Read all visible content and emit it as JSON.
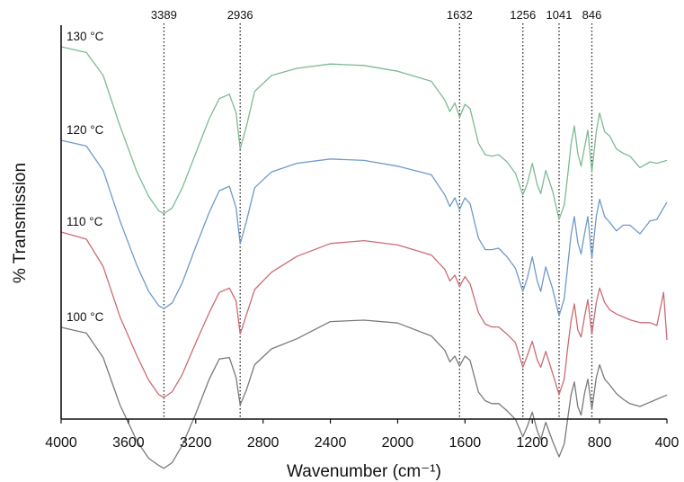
{
  "chart_data": {
    "type": "line",
    "xlabel": "Wavenumber (cm⁻¹)",
    "ylabel": "% Transmission",
    "xlim": [
      4000,
      400
    ],
    "x_reversed": true,
    "x_ticks": [
      {
        "value": 4000,
        "label": "4000"
      },
      {
        "value": 3600,
        "label": "3600"
      },
      {
        "value": 3200,
        "label": "3200"
      },
      {
        "value": 2800,
        "label": "2800"
      },
      {
        "value": 2400,
        "label": "2400"
      },
      {
        "value": 2000,
        "label": "2000"
      },
      {
        "value": 1600,
        "label": "1600"
      },
      {
        "value": 1200,
        "label": "1200"
      },
      {
        "value": 800,
        "label": "800"
      },
      {
        "value": 400,
        "label": "400"
      }
    ],
    "y_ticks_shown": false,
    "grid": false,
    "peak_markers": [
      {
        "value": 3389,
        "label": "3389"
      },
      {
        "value": 2936,
        "label": "2936"
      },
      {
        "value": 1632,
        "label": "1632"
      },
      {
        "value": 1256,
        "label": "1256"
      },
      {
        "value": 1041,
        "label": "1041"
      },
      {
        "value": 846,
        "label": "846"
      }
    ],
    "series": [
      {
        "name": "130 °C",
        "color": "#7dba95",
        "x": [
          4000,
          3850,
          3750,
          3650,
          3550,
          3480,
          3420,
          3389,
          3340,
          3280,
          3200,
          3120,
          3060,
          3000,
          2960,
          2936,
          2900,
          2850,
          2750,
          2600,
          2400,
          2200,
          2000,
          1800,
          1720,
          1690,
          1660,
          1632,
          1600,
          1570,
          1520,
          1480,
          1440,
          1400,
          1350,
          1300,
          1256,
          1230,
          1200,
          1170,
          1150,
          1120,
          1080,
          1041,
          1010,
          990,
          970,
          950,
          930,
          910,
          890,
          870,
          846,
          820,
          800,
          770,
          740,
          700,
          660,
          620,
          560,
          500,
          460,
          400
        ],
        "y": [
          0.0,
          -0.4,
          -2.0,
          -5.5,
          -8.7,
          -10.4,
          -11.4,
          -11.6,
          -11.2,
          -9.8,
          -7.4,
          -5.0,
          -3.6,
          -3.3,
          -4.6,
          -7.1,
          -5.6,
          -3.1,
          -2.0,
          -1.5,
          -1.2,
          -1.3,
          -1.7,
          -2.4,
          -3.7,
          -4.5,
          -3.9,
          -4.9,
          -4.0,
          -4.3,
          -6.7,
          -7.5,
          -7.6,
          -7.5,
          -8.0,
          -8.8,
          -10.3,
          -9.5,
          -8.1,
          -9.6,
          -10.2,
          -8.6,
          -10.0,
          -12.0,
          -11.0,
          -9.0,
          -6.8,
          -5.5,
          -7.4,
          -8.3,
          -7.0,
          -5.8,
          -8.7,
          -5.9,
          -4.6,
          -5.9,
          -6.2,
          -7.1,
          -7.4,
          -7.6,
          -8.4,
          -8.0,
          -8.1,
          -7.9
        ]
      },
      {
        "name": "120 °C",
        "color": "#6e9ac9",
        "x": [
          4000,
          3850,
          3750,
          3650,
          3550,
          3480,
          3420,
          3389,
          3340,
          3280,
          3200,
          3120,
          3060,
          3000,
          2960,
          2936,
          2900,
          2850,
          2750,
          2600,
          2400,
          2200,
          2000,
          1800,
          1720,
          1690,
          1660,
          1632,
          1600,
          1570,
          1520,
          1480,
          1440,
          1400,
          1350,
          1300,
          1256,
          1230,
          1200,
          1170,
          1150,
          1120,
          1080,
          1041,
          1010,
          990,
          970,
          950,
          930,
          910,
          890,
          870,
          846,
          820,
          800,
          770,
          740,
          700,
          660,
          620,
          560,
          500,
          460,
          400
        ],
        "y": [
          0.0,
          -0.4,
          -2.1,
          -5.6,
          -8.7,
          -10.5,
          -11.5,
          -11.7,
          -11.3,
          -9.9,
          -7.4,
          -5.0,
          -3.5,
          -3.2,
          -4.7,
          -7.2,
          -5.7,
          -3.3,
          -2.2,
          -1.6,
          -1.3,
          -1.4,
          -1.8,
          -2.4,
          -3.8,
          -4.6,
          -4.0,
          -4.8,
          -4.0,
          -4.4,
          -6.8,
          -7.6,
          -7.6,
          -7.5,
          -8.1,
          -8.9,
          -10.5,
          -9.6,
          -8.1,
          -9.8,
          -10.5,
          -8.8,
          -10.3,
          -12.2,
          -11.0,
          -8.8,
          -6.6,
          -5.3,
          -7.1,
          -7.9,
          -6.5,
          -5.3,
          -8.2,
          -5.3,
          -4.1,
          -5.3,
          -5.7,
          -6.3,
          -5.9,
          -5.9,
          -6.5,
          -5.6,
          -5.5,
          -4.3
        ]
      },
      {
        "name": "110 °C",
        "color": "#cc6b73",
        "x": [
          4000,
          3850,
          3750,
          3650,
          3550,
          3480,
          3420,
          3389,
          3340,
          3280,
          3200,
          3120,
          3060,
          3000,
          2960,
          2936,
          2900,
          2850,
          2750,
          2600,
          2400,
          2200,
          2000,
          1800,
          1720,
          1690,
          1660,
          1632,
          1600,
          1570,
          1520,
          1480,
          1440,
          1400,
          1350,
          1300,
          1256,
          1230,
          1200,
          1170,
          1150,
          1120,
          1080,
          1041,
          1010,
          990,
          970,
          950,
          930,
          910,
          890,
          870,
          846,
          820,
          800,
          770,
          740,
          700,
          660,
          620,
          560,
          500,
          460,
          420,
          400
        ],
        "y": [
          0.0,
          -0.5,
          -2.4,
          -5.9,
          -8.6,
          -10.3,
          -11.3,
          -11.5,
          -11.1,
          -9.9,
          -7.7,
          -5.6,
          -4.2,
          -3.9,
          -4.8,
          -7.1,
          -5.8,
          -4.0,
          -2.8,
          -1.7,
          -0.8,
          -0.6,
          -0.9,
          -1.6,
          -2.6,
          -3.4,
          -3.0,
          -3.8,
          -3.1,
          -3.6,
          -5.6,
          -6.4,
          -6.6,
          -6.6,
          -7.1,
          -7.7,
          -9.4,
          -8.6,
          -7.6,
          -8.9,
          -9.4,
          -8.3,
          -9.8,
          -11.3,
          -10.2,
          -8.1,
          -6.2,
          -5.0,
          -6.8,
          -7.3,
          -5.9,
          -4.7,
          -7.1,
          -4.9,
          -3.9,
          -4.9,
          -5.4,
          -5.7,
          -5.9,
          -6.1,
          -6.3,
          -6.3,
          -6.5,
          -4.2,
          -7.5
        ]
      },
      {
        "name": "100 °C",
        "color": "#7a7a7a",
        "x": [
          4000,
          3850,
          3750,
          3650,
          3550,
          3480,
          3420,
          3389,
          3340,
          3280,
          3200,
          3120,
          3060,
          3000,
          2960,
          2936,
          2900,
          2850,
          2750,
          2600,
          2400,
          2200,
          2000,
          1800,
          1720,
          1690,
          1660,
          1632,
          1600,
          1570,
          1520,
          1480,
          1440,
          1400,
          1350,
          1300,
          1256,
          1230,
          1200,
          1170,
          1150,
          1120,
          1080,
          1041,
          1010,
          990,
          970,
          950,
          930,
          910,
          890,
          870,
          846,
          820,
          800,
          770,
          740,
          700,
          660,
          620,
          560,
          500,
          460,
          400
        ],
        "y": [
          0.0,
          -0.4,
          -2.1,
          -5.4,
          -7.9,
          -9.1,
          -9.6,
          -9.8,
          -9.4,
          -8.2,
          -6.0,
          -3.6,
          -2.2,
          -2.1,
          -3.5,
          -5.4,
          -4.4,
          -2.6,
          -1.5,
          -0.8,
          0.4,
          0.5,
          0.3,
          -0.6,
          -1.6,
          -2.4,
          -2.0,
          -2.7,
          -2.0,
          -2.3,
          -4.5,
          -5.1,
          -5.3,
          -5.3,
          -5.8,
          -6.4,
          -7.6,
          -6.9,
          -5.9,
          -7.2,
          -7.8,
          -6.6,
          -7.9,
          -9.0,
          -8.1,
          -6.4,
          -4.7,
          -3.8,
          -5.5,
          -6.1,
          -4.6,
          -3.6,
          -5.7,
          -3.5,
          -2.6,
          -3.6,
          -4.0,
          -4.6,
          -5.0,
          -5.3,
          -5.5,
          -5.2,
          -5.0,
          -4.7
        ]
      }
    ]
  }
}
